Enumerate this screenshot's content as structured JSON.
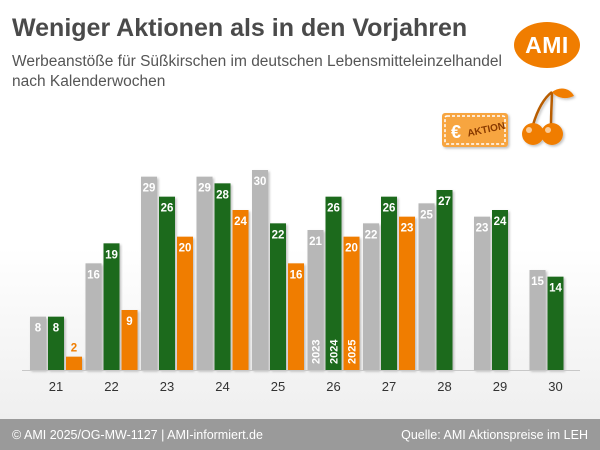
{
  "header": {
    "title": "Weniger Aktionen als in den Vorjahren",
    "subtitle": "Werbeanstöße für Süßkirschen im deutschen Lebensmitteleinzelhandel nach Kalenderwochen",
    "logo": "AMI"
  },
  "badge": {
    "symbol": "€",
    "text": "AKTION",
    "icon": "cherries-icon"
  },
  "footer": {
    "left": "© AMI 2025/OG-MW-1127 | AMI-informiert.de",
    "right": "Quelle: AMI Aktionspreise im LEH"
  },
  "colors": {
    "2023": "#b7b7b7",
    "2024": "#1e6b1e",
    "2025": "#f07d00",
    "accent": "#f07d00"
  },
  "chart_data": {
    "type": "bar",
    "categories": [
      "21",
      "22",
      "23",
      "24",
      "25",
      "26",
      "27",
      "28",
      "29",
      "30"
    ],
    "series": [
      {
        "name": "2023",
        "values": [
          8,
          16,
          29,
          29,
          30,
          21,
          22,
          25,
          23,
          15
        ]
      },
      {
        "name": "2024",
        "values": [
          8,
          19,
          26,
          28,
          22,
          26,
          26,
          27,
          24,
          14
        ]
      },
      {
        "name": "2025",
        "values": [
          2,
          9,
          20,
          24,
          16,
          20,
          23,
          null,
          null,
          null
        ]
      }
    ],
    "legend": "inside bars of week 26",
    "ylim": [
      0,
      30
    ],
    "grid": false,
    "xlabel": "",
    "ylabel": ""
  }
}
